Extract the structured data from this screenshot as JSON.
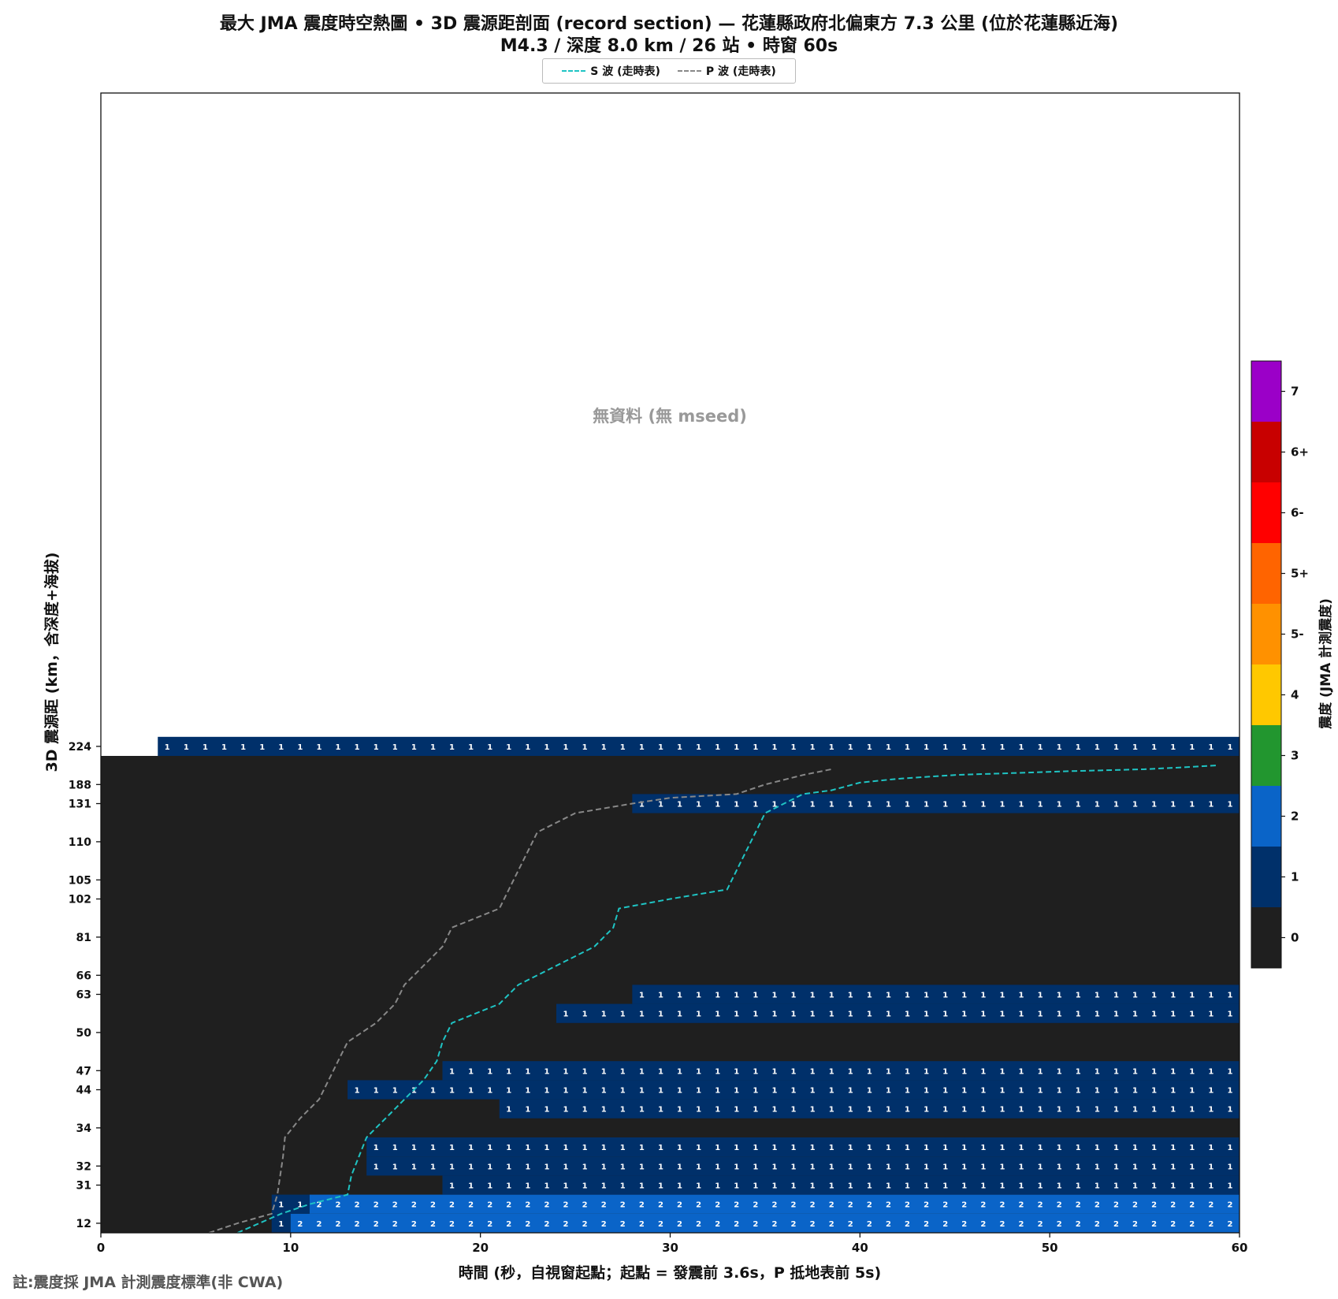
{
  "title": {
    "line1": "最大 JMA 震度時空熱圖 • 3D 震源距剖面 (record section) — 花蓮縣政府北偏東方 7.3 公里 (位於花蓮縣近海)",
    "line2": "M4.3 / 深度 8.0 km / 26 站 • 時窗 60s"
  },
  "footnote": "註:震度採 JMA 計測震度標準(非 CWA)",
  "chart_data": {
    "type": "heatmap",
    "xlabel": "時間 (秒，自視窗起點；起點 = 發震前 3.6s，P 抵地表前 5s)",
    "ylabel": "3D 震源距 (km，含深度+海拔)",
    "xlim": [
      0,
      60
    ],
    "x_ticks": [
      0,
      10,
      20,
      30,
      40,
      50,
      60
    ],
    "y_tick_labels": [
      "12",
      "31",
      "32",
      "34",
      "44",
      "47",
      "50",
      "63",
      "66",
      "81",
      "102",
      "105",
      "110",
      "131",
      "188",
      "224"
    ],
    "no_data_label": "無資料 (無 mseed)",
    "legend": [
      {
        "label": "S 波 (走時表)",
        "color": "#1fc4c4"
      },
      {
        "label": "P 波 (走時表)",
        "color": "#888888"
      }
    ],
    "colorbar": {
      "label": "震度 (JMA 計測震度)",
      "levels": [
        {
          "label": "0",
          "color": "#1f1f1f"
        },
        {
          "label": "1",
          "color": "#00306a"
        },
        {
          "label": "2",
          "color": "#0a64c8"
        },
        {
          "label": "3",
          "color": "#22962f"
        },
        {
          "label": "4",
          "color": "#ffc800"
        },
        {
          "label": "5-",
          "color": "#ff9100"
        },
        {
          "label": "5+",
          "color": "#ff6400"
        },
        {
          "label": "6-",
          "color": "#ff0000"
        },
        {
          "label": "6+",
          "color": "#c80000"
        },
        {
          "label": "7",
          "color": "#9b00c8"
        }
      ]
    },
    "rows": [
      {
        "label": "12",
        "segments": [
          {
            "start": 9,
            "end": 10,
            "level": 1
          },
          {
            "start": 10,
            "end": 60,
            "level": 2
          }
        ]
      },
      {
        "label": "",
        "segments": [
          {
            "start": 9,
            "end": 11,
            "level": 1
          },
          {
            "start": 11,
            "end": 60,
            "level": 2
          }
        ]
      },
      {
        "label": "31",
        "segments": [
          {
            "start": 18,
            "end": 60,
            "level": 1
          }
        ]
      },
      {
        "label": "32",
        "segments": [
          {
            "start": 14,
            "end": 60,
            "level": 1
          }
        ]
      },
      {
        "label": "",
        "segments": [
          {
            "start": 14,
            "end": 60,
            "level": 1
          }
        ]
      },
      {
        "label": "34",
        "segments": []
      },
      {
        "label": "",
        "segments": [
          {
            "start": 21,
            "end": 60,
            "level": 1
          }
        ]
      },
      {
        "label": "44",
        "segments": [
          {
            "start": 13,
            "end": 60,
            "level": 1
          }
        ]
      },
      {
        "label": "47",
        "segments": [
          {
            "start": 18,
            "end": 60,
            "level": 1
          }
        ]
      },
      {
        "label": "",
        "segments": []
      },
      {
        "label": "50",
        "segments": []
      },
      {
        "label": "",
        "segments": [
          {
            "start": 24,
            "end": 60,
            "level": 1
          }
        ]
      },
      {
        "label": "63",
        "segments": [
          {
            "start": 28,
            "end": 60,
            "level": 1
          }
        ]
      },
      {
        "label": "66",
        "segments": []
      },
      {
        "label": "",
        "segments": []
      },
      {
        "label": "81",
        "segments": []
      },
      {
        "label": "",
        "segments": []
      },
      {
        "label": "102",
        "segments": []
      },
      {
        "label": "105",
        "segments": []
      },
      {
        "label": "",
        "segments": []
      },
      {
        "label": "110",
        "segments": []
      },
      {
        "label": "",
        "segments": []
      },
      {
        "label": "131",
        "segments": [
          {
            "start": 28,
            "end": 60,
            "level": 1
          }
        ]
      },
      {
        "label": "188",
        "segments": []
      },
      {
        "label": "",
        "segments": []
      },
      {
        "label": "224",
        "segments": [
          {
            "start": 3,
            "end": 60,
            "level": 1
          }
        ],
        "nodata_before": true
      }
    ],
    "p_wave": [
      [
        5.7,
        0
      ],
      [
        7.2,
        0.5
      ],
      [
        9,
        1
      ],
      [
        9.3,
        2
      ],
      [
        9.6,
        4
      ],
      [
        9.7,
        5
      ],
      [
        10.5,
        6
      ],
      [
        11.5,
        7
      ],
      [
        12,
        8
      ],
      [
        12.5,
        9
      ],
      [
        13,
        10
      ],
      [
        14.5,
        11
      ],
      [
        15.5,
        12
      ],
      [
        16,
        13
      ],
      [
        17,
        14
      ],
      [
        18,
        15
      ],
      [
        18.5,
        16
      ],
      [
        21,
        17
      ],
      [
        21.5,
        18
      ],
      [
        22,
        19
      ],
      [
        22.5,
        20
      ],
      [
        23,
        21
      ],
      [
        25,
        22
      ],
      [
        28,
        22.5
      ],
      [
        30,
        22.8
      ],
      [
        33.5,
        23
      ],
      [
        35,
        23.5
      ],
      [
        37,
        24
      ],
      [
        38.5,
        24.3
      ]
    ],
    "s_wave": [
      [
        7.2,
        0
      ],
      [
        9.5,
        1
      ],
      [
        11,
        1.5
      ],
      [
        13,
        2
      ],
      [
        13.2,
        3
      ],
      [
        13.6,
        4
      ],
      [
        14,
        5
      ],
      [
        15,
        6
      ],
      [
        16,
        7
      ],
      [
        17,
        8
      ],
      [
        17.7,
        9
      ],
      [
        18,
        10
      ],
      [
        18.5,
        11
      ],
      [
        21,
        12
      ],
      [
        22,
        13
      ],
      [
        24,
        14
      ],
      [
        26,
        15
      ],
      [
        27,
        16
      ],
      [
        27.3,
        17
      ],
      [
        30,
        17.5
      ],
      [
        33,
        18
      ],
      [
        33.5,
        19
      ],
      [
        34,
        20
      ],
      [
        34.5,
        21
      ],
      [
        35,
        22
      ],
      [
        37,
        23
      ],
      [
        38.5,
        23.2
      ],
      [
        40,
        23.6
      ],
      [
        42,
        23.8
      ],
      [
        45,
        24
      ],
      [
        48,
        24.1
      ],
      [
        51,
        24.2
      ],
      [
        55,
        24.3
      ],
      [
        57,
        24.4
      ],
      [
        58.8,
        24.5
      ]
    ]
  }
}
